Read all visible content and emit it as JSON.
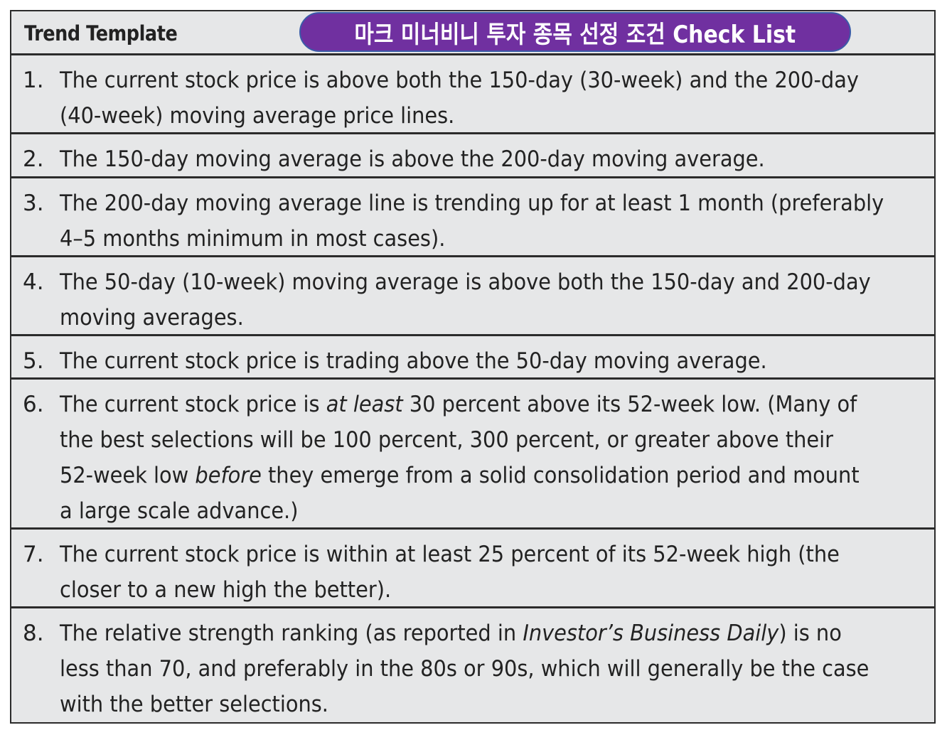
{
  "header": {
    "title": "Trend Template",
    "badge": "마크 미너비니 투자 종목 선정 조건 Check List"
  },
  "items": [
    {
      "number": "1.",
      "lines": [
        "The current stock price is above both the 150-day (30-week) and the 200-day",
        "(40-week) moving average price lines."
      ]
    },
    {
      "number": "2.",
      "lines": [
        "The 150-day moving average is above the 200-day moving average."
      ]
    },
    {
      "number": "3.",
      "lines": [
        "The 200-day moving average line is trending up for at least 1 month (preferably",
        "4–5 months minimum in most cases)."
      ]
    },
    {
      "number": "4.",
      "lines": [
        "The 50-day (10-week) moving average is above both the 150-day and 200-day",
        "moving averages."
      ]
    },
    {
      "number": "5.",
      "lines": [
        "The current stock price is trading above the 50-day moving average."
      ]
    },
    {
      "number": "6.",
      "line1_a": "The current stock price is ",
      "line1_em": "at least",
      "line1_b": " 30 percent above its 52-week low. (Many of",
      "line2": "the best selections will be 100 percent, 300 percent, or greater above their",
      "line3_a": "52-week low ",
      "line3_em": "before",
      "line3_b": " they emerge from a solid consolidation period and mount",
      "line4": "a large scale advance.)"
    },
    {
      "number": "7.",
      "lines": [
        "The current stock price is within at least 25 percent of its 52-week high (the",
        "closer to a new high the better)."
      ]
    },
    {
      "number": "8.",
      "line1_a": "The relative strength ranking (as reported in ",
      "line1_em": "Investor’s Business Daily",
      "line1_b": ") is no",
      "line2": "less than 70, and preferably in the 80s or 90s, which will generally be the case",
      "line3": "with the better selections."
    }
  ]
}
